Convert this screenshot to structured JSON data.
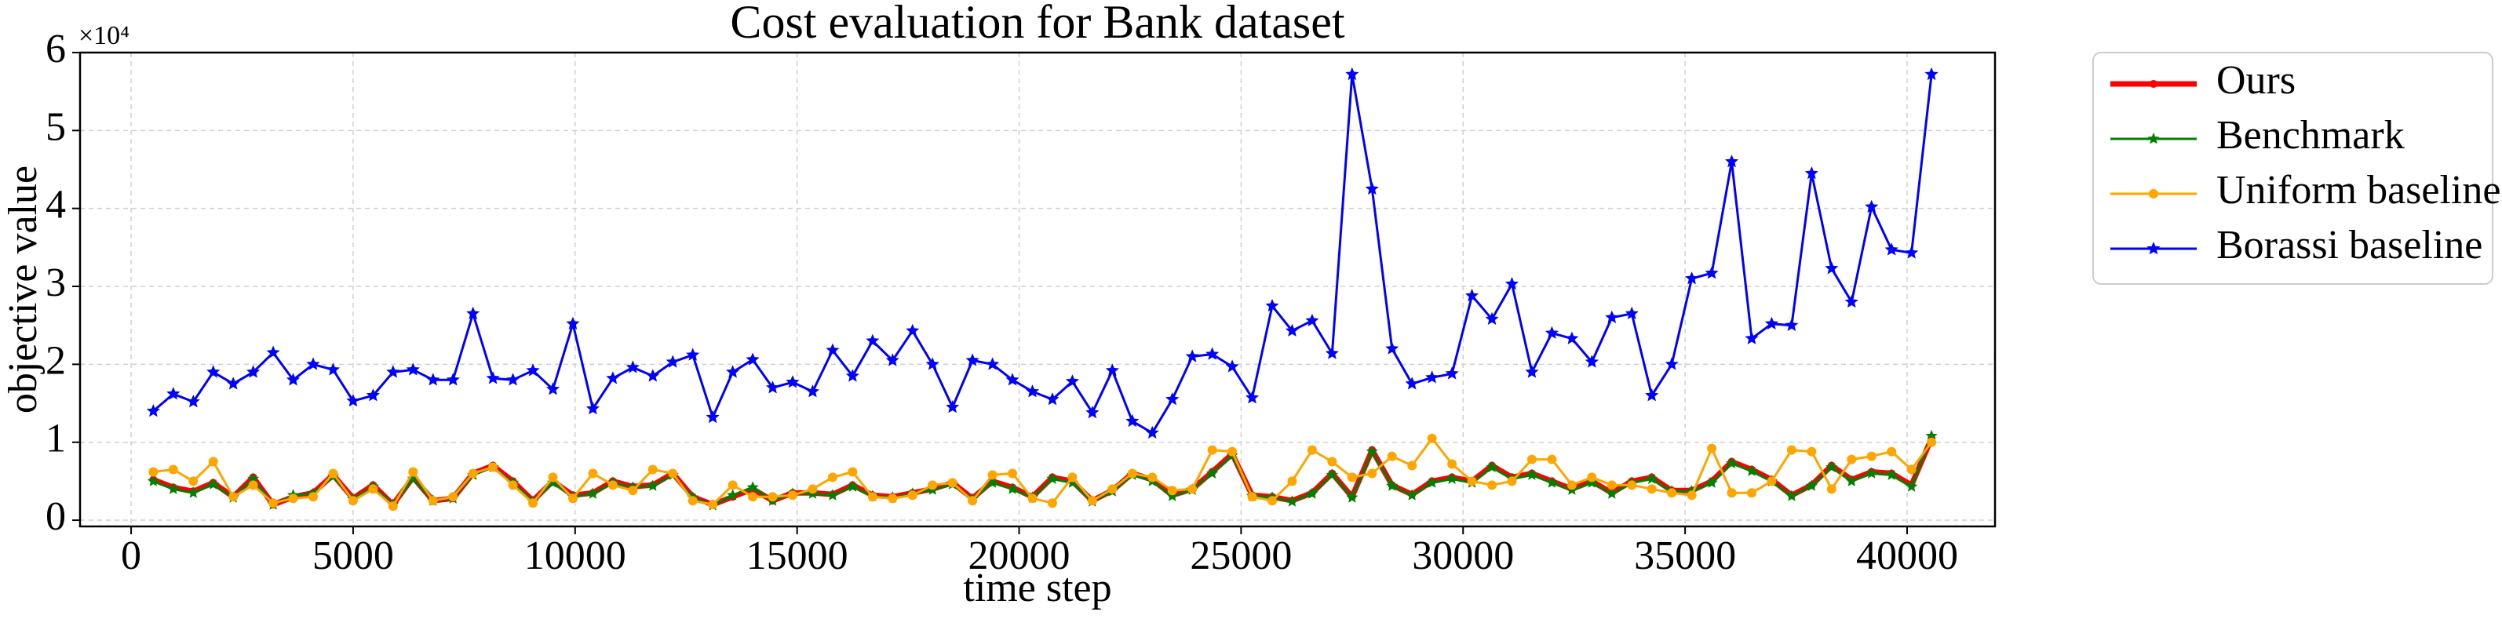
{
  "chart_data": {
    "type": "line",
    "title": "Cost evaluation for Bank dataset",
    "x_label": "time step",
    "y_label": "objective value",
    "y_offset_label": "×10⁴",
    "x": [
      500,
      950,
      1400,
      1850,
      2300,
      2750,
      3200,
      3650,
      4100,
      4550,
      5000,
      5450,
      5900,
      6350,
      6800,
      7250,
      7700,
      8150,
      8600,
      9050,
      9500,
      9950,
      10400,
      10850,
      11300,
      11750,
      12200,
      12650,
      13100,
      13550,
      14000,
      14450,
      14900,
      15350,
      15800,
      16250,
      16700,
      17150,
      17600,
      18050,
      18500,
      18950,
      19400,
      19850,
      20300,
      20750,
      21200,
      21650,
      22100,
      22550,
      23000,
      23450,
      23900,
      24350,
      24800,
      25250,
      25700,
      26150,
      26600,
      27050,
      27500,
      27950,
      28400,
      28850,
      29300,
      29750,
      30200,
      30650,
      31100,
      31550,
      32000,
      32450,
      32900,
      33350,
      33800,
      34250,
      34700,
      35150,
      35600,
      36050,
      36500,
      36950,
      37400,
      37850,
      38300,
      38750,
      39200,
      39650,
      40100,
      40550
    ],
    "series": [
      {
        "name": "Ours",
        "color": "#ff0000",
        "values": [
          0.52,
          0.42,
          0.37,
          0.48,
          0.3,
          0.55,
          0.2,
          0.3,
          0.35,
          0.58,
          0.28,
          0.45,
          0.2,
          0.55,
          0.25,
          0.28,
          0.6,
          0.7,
          0.5,
          0.25,
          0.5,
          0.32,
          0.35,
          0.5,
          0.43,
          0.45,
          0.6,
          0.3,
          0.2,
          0.3,
          0.4,
          0.25,
          0.35,
          0.35,
          0.33,
          0.45,
          0.32,
          0.3,
          0.35,
          0.4,
          0.48,
          0.28,
          0.5,
          0.42,
          0.3,
          0.55,
          0.5,
          0.25,
          0.38,
          0.6,
          0.52,
          0.32,
          0.4,
          0.62,
          0.85,
          0.32,
          0.3,
          0.25,
          0.35,
          0.6,
          0.3,
          0.9,
          0.45,
          0.33,
          0.5,
          0.55,
          0.5,
          0.7,
          0.55,
          0.6,
          0.5,
          0.4,
          0.5,
          0.35,
          0.5,
          0.55,
          0.38,
          0.38,
          0.5,
          0.75,
          0.65,
          0.52,
          0.32,
          0.45,
          0.7,
          0.52,
          0.62,
          0.6,
          0.45,
          1.05
        ]
      },
      {
        "name": "Benchmark",
        "color": "#008000",
        "values": [
          0.5,
          0.4,
          0.35,
          0.46,
          0.29,
          0.53,
          0.2,
          0.32,
          0.34,
          0.56,
          0.27,
          0.43,
          0.2,
          0.53,
          0.25,
          0.28,
          0.58,
          0.68,
          0.48,
          0.24,
          0.48,
          0.3,
          0.34,
          0.48,
          0.42,
          0.44,
          0.58,
          0.29,
          0.19,
          0.32,
          0.42,
          0.25,
          0.34,
          0.34,
          0.32,
          0.43,
          0.31,
          0.29,
          0.34,
          0.39,
          0.46,
          0.27,
          0.48,
          0.4,
          0.29,
          0.53,
          0.48,
          0.24,
          0.37,
          0.58,
          0.5,
          0.31,
          0.39,
          0.6,
          0.83,
          0.31,
          0.29,
          0.24,
          0.34,
          0.58,
          0.29,
          0.88,
          0.44,
          0.32,
          0.48,
          0.53,
          0.48,
          0.68,
          0.53,
          0.58,
          0.48,
          0.39,
          0.48,
          0.34,
          0.48,
          0.53,
          0.37,
          0.37,
          0.48,
          0.73,
          0.63,
          0.5,
          0.31,
          0.44,
          0.68,
          0.5,
          0.6,
          0.58,
          0.43,
          1.08
        ]
      },
      {
        "name": "Uniform baseline",
        "color": "#ffa500",
        "values": [
          0.62,
          0.65,
          0.5,
          0.75,
          0.3,
          0.45,
          0.22,
          0.28,
          0.3,
          0.6,
          0.25,
          0.4,
          0.18,
          0.62,
          0.25,
          0.3,
          0.6,
          0.68,
          0.45,
          0.22,
          0.55,
          0.28,
          0.6,
          0.45,
          0.38,
          0.65,
          0.6,
          0.25,
          0.2,
          0.45,
          0.3,
          0.3,
          0.32,
          0.4,
          0.55,
          0.62,
          0.3,
          0.28,
          0.32,
          0.45,
          0.48,
          0.25,
          0.58,
          0.6,
          0.28,
          0.22,
          0.55,
          0.25,
          0.4,
          0.6,
          0.55,
          0.38,
          0.4,
          0.9,
          0.88,
          0.3,
          0.25,
          0.5,
          0.9,
          0.75,
          0.55,
          0.6,
          0.82,
          0.7,
          1.05,
          0.72,
          0.5,
          0.45,
          0.5,
          0.78,
          0.78,
          0.45,
          0.55,
          0.45,
          0.45,
          0.4,
          0.35,
          0.32,
          0.92,
          0.35,
          0.35,
          0.5,
          0.9,
          0.88,
          0.4,
          0.78,
          0.82,
          0.88,
          0.65,
          1.0
        ]
      },
      {
        "name": "Borassi baseline",
        "color": "#0000ff",
        "values": [
          1.4,
          1.62,
          1.52,
          1.9,
          1.75,
          1.9,
          2.15,
          1.8,
          2.0,
          1.93,
          1.53,
          1.6,
          1.9,
          1.93,
          1.8,
          1.8,
          2.65,
          1.82,
          1.8,
          1.92,
          1.68,
          2.52,
          1.43,
          1.82,
          1.96,
          1.85,
          2.03,
          2.12,
          1.32,
          1.9,
          2.06,
          1.7,
          1.77,
          1.65,
          2.18,
          1.85,
          2.3,
          2.05,
          2.43,
          2.0,
          1.45,
          2.05,
          2.0,
          1.8,
          1.65,
          1.55,
          1.78,
          1.38,
          1.92,
          1.27,
          1.12,
          1.55,
          2.1,
          2.13,
          1.97,
          1.57,
          2.75,
          2.43,
          2.56,
          2.14,
          5.72,
          4.25,
          2.2,
          1.75,
          1.83,
          1.88,
          2.88,
          2.58,
          3.03,
          1.9,
          2.4,
          2.33,
          2.03,
          2.6,
          2.65,
          1.6,
          2.0,
          3.1,
          3.17,
          4.6,
          2.33,
          2.52,
          2.5,
          4.45,
          3.23,
          2.8,
          4.02,
          3.47,
          3.43,
          5.72
        ]
      }
    ],
    "xlim": [
      -1150,
      41980
    ],
    "xticks": [
      0,
      5000,
      10000,
      15000,
      20000,
      25000,
      30000,
      35000,
      40000
    ],
    "ylim": [
      -0.08,
      6
    ],
    "yticks": [
      0,
      1,
      2,
      3,
      4,
      5,
      6
    ],
    "grid": true,
    "legend": "outside upper right"
  }
}
